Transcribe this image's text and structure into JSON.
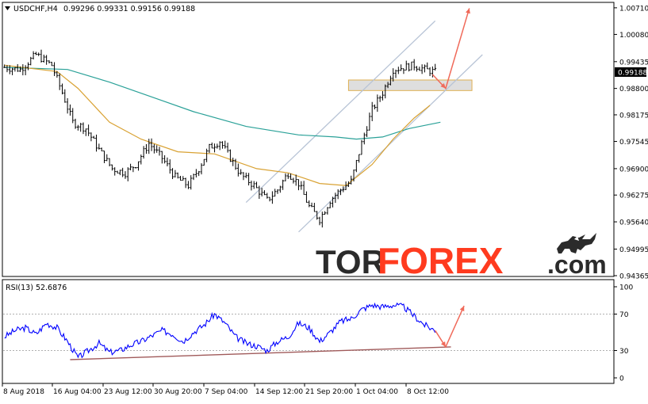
{
  "header": {
    "symbol_label": "USDCHF,H4",
    "ohlc_label": "0.99296 0.99331 0.99156 0.99188"
  },
  "watermark": {
    "part_a": "TOR",
    "part_b": "FOREX",
    "part_c": ".com"
  },
  "colors": {
    "background": "#ffffff",
    "candle": "#000000",
    "ma_fast": "#d9a233",
    "ma_slow": "#2aa198",
    "channel": "#b8c4d6",
    "resistance_zone": "#d9d9d9",
    "arrow": "#f06a5a",
    "rsi_line": "#0000ff",
    "rsi_trend": "#a05a5a",
    "price_tag_bg": "#000000",
    "price_tag_text": "#ffffff",
    "watermark_dark": "#2b2b2b",
    "watermark_brand": "#ff3b1f"
  },
  "chart_data": [
    {
      "type": "candlestick",
      "title": "USDCHF,H4",
      "y_axis_ticks": [
        "1.00710",
        "1.00080",
        "0.99435",
        "0.98800",
        "0.98175",
        "0.97545",
        "0.96900",
        "0.96275",
        "0.95640",
        "0.94995",
        "0.94365"
      ],
      "current_price": "0.99188",
      "ylim": [
        0.94365,
        1.0082
      ],
      "x_tick_labels": [
        "8 Aug 2018",
        "16 Aug 04:00",
        "23 Aug 12:00",
        "30 Aug 20:00",
        "7 Sep 04:00",
        "14 Sep 12:00",
        "21 Sep 20:00",
        "1 Oct 04:00",
        "8 Oct 12:00"
      ],
      "close_path": [
        [
          0,
          0.993
        ],
        [
          6,
          0.9925
        ],
        [
          12,
          0.996
        ],
        [
          18,
          0.9935
        ],
        [
          22,
          0.987
        ],
        [
          26,
          0.98
        ],
        [
          31,
          0.9785
        ],
        [
          36,
          0.9735
        ],
        [
          41,
          0.969
        ],
        [
          46,
          0.968
        ],
        [
          50,
          0.97
        ],
        [
          55,
          0.975
        ],
        [
          60,
          0.9715
        ],
        [
          65,
          0.967
        ],
        [
          70,
          0.965
        ],
        [
          74,
          0.969
        ],
        [
          78,
          0.974
        ],
        [
          82,
          0.9755
        ],
        [
          86,
          0.9715
        ],
        [
          90,
          0.9675
        ],
        [
          95,
          0.965
        ],
        [
          100,
          0.9615
        ],
        [
          104,
          0.964
        ],
        [
          108,
          0.968
        ],
        [
          112,
          0.9655
        ],
        [
          116,
          0.96
        ],
        [
          120,
          0.957
        ],
        [
          124,
          0.9615
        ],
        [
          128,
          0.964
        ],
        [
          132,
          0.966
        ],
        [
          136,
          0.975
        ],
        [
          140,
          0.983
        ],
        [
          144,
          0.987
        ],
        [
          148,
          0.9925
        ],
        [
          152,
          0.993
        ],
        [
          156,
          0.9935
        ],
        [
          160,
          0.9925
        ],
        [
          164,
          0.9919
        ]
      ],
      "ma_fast_path": [
        [
          0,
          0.9935
        ],
        [
          20,
          0.992
        ],
        [
          28,
          0.988
        ],
        [
          40,
          0.98
        ],
        [
          52,
          0.976
        ],
        [
          66,
          0.973
        ],
        [
          80,
          0.9725
        ],
        [
          96,
          0.969
        ],
        [
          108,
          0.968
        ],
        [
          120,
          0.9655
        ],
        [
          130,
          0.965
        ],
        [
          140,
          0.97
        ],
        [
          148,
          0.976
        ],
        [
          156,
          0.981
        ],
        [
          162,
          0.984
        ]
      ],
      "ma_slow_path": [
        [
          0,
          0.993
        ],
        [
          24,
          0.9925
        ],
        [
          40,
          0.9895
        ],
        [
          56,
          0.986
        ],
        [
          72,
          0.9825
        ],
        [
          92,
          0.979
        ],
        [
          112,
          0.977
        ],
        [
          126,
          0.9765
        ],
        [
          134,
          0.976
        ],
        [
          144,
          0.9765
        ],
        [
          154,
          0.9785
        ],
        [
          166,
          0.98
        ]
      ],
      "channel_lower": [
        [
          112,
          0.954
        ],
        [
          182,
          0.996
        ]
      ],
      "channel_upper": [
        [
          92,
          0.961
        ],
        [
          164,
          1.004
        ]
      ],
      "resistance_zone": {
        "x": [
          131,
          178
        ],
        "y": [
          0.9875,
          0.99
        ]
      },
      "forecast_path": [
        [
          163,
          0.9913
        ],
        [
          168,
          0.988
        ],
        [
          177,
          1.007
        ]
      ]
    },
    {
      "type": "line",
      "title": "RSI(13) 52.6876",
      "y_axis_ticks": [
        "100",
        "70",
        "30",
        "0"
      ],
      "ylim": [
        0,
        100
      ],
      "levels": [
        70,
        30
      ],
      "rsi_path": [
        [
          0,
          45
        ],
        [
          4,
          52
        ],
        [
          8,
          55
        ],
        [
          12,
          48
        ],
        [
          16,
          60
        ],
        [
          20,
          55
        ],
        [
          24,
          40
        ],
        [
          28,
          22
        ],
        [
          32,
          30
        ],
        [
          36,
          38
        ],
        [
          40,
          28
        ],
        [
          44,
          30
        ],
        [
          48,
          36
        ],
        [
          52,
          40
        ],
        [
          56,
          46
        ],
        [
          60,
          52
        ],
        [
          64,
          48
        ],
        [
          68,
          40
        ],
        [
          72,
          50
        ],
        [
          76,
          58
        ],
        [
          80,
          70
        ],
        [
          84,
          60
        ],
        [
          88,
          45
        ],
        [
          92,
          38
        ],
        [
          96,
          35
        ],
        [
          100,
          30
        ],
        [
          104,
          40
        ],
        [
          108,
          45
        ],
        [
          112,
          60
        ],
        [
          116,
          55
        ],
        [
          120,
          40
        ],
        [
          124,
          50
        ],
        [
          128,
          62
        ],
        [
          132,
          65
        ],
        [
          136,
          75
        ],
        [
          140,
          80
        ],
        [
          144,
          78
        ],
        [
          148,
          80
        ],
        [
          152,
          78
        ],
        [
          156,
          68
        ],
        [
          160,
          58
        ],
        [
          164,
          52
        ]
      ],
      "trend_line": [
        [
          25,
          20
        ],
        [
          170,
          34
        ]
      ],
      "forecast_path": [
        [
          164,
          52
        ],
        [
          168,
          34
        ],
        [
          175,
          79
        ]
      ]
    }
  ]
}
